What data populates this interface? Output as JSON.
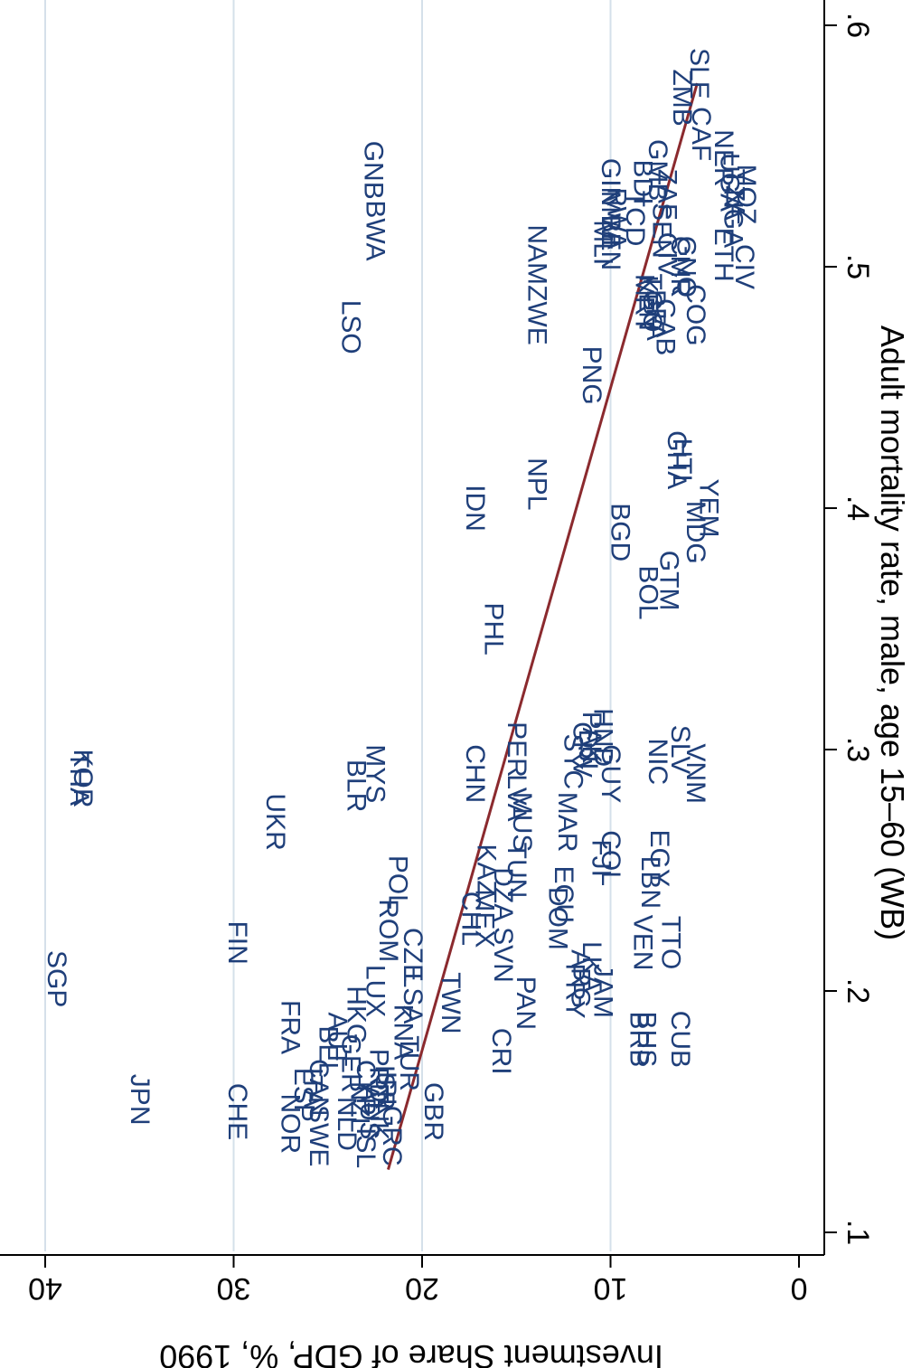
{
  "chart_data": {
    "type": "scatter",
    "xlabel": "Adult mortality rate, male, age 15–60 (WB)",
    "ylabel": "Investment Share of GDP, %, 1990",
    "xlim": [
      0.09,
      0.61
    ],
    "ylim": [
      0,
      40
    ],
    "x_ticks": [
      0.1,
      0.2,
      0.3,
      0.4,
      0.5,
      0.6
    ],
    "x_tick_labels": [
      ".1",
      ".2",
      ".3",
      ".4",
      ".5",
      ".6"
    ],
    "y_ticks": [
      0,
      10,
      20,
      30,
      40
    ],
    "y_tick_labels": [
      "0",
      "10",
      "20",
      "30",
      "40"
    ],
    "grid": true,
    "rotated": "figure rotated 90 degrees clockwise",
    "colors": {
      "label": "#1f3f7a",
      "fit": "#8b2a2e",
      "grid": "#d5e0ea"
    },
    "fit_line": {
      "x": [
        0.126,
        0.576
      ],
      "y": [
        21.8,
        5.4
      ]
    },
    "points": [
      {
        "label": "SGP",
        "x": 0.205,
        "y": 39.4
      },
      {
        "label": "JPN",
        "x": 0.155,
        "y": 35.0
      },
      {
        "label": "THA",
        "x": 0.288,
        "y": 38.2
      },
      {
        "label": "KOR",
        "x": 0.288,
        "y": 38.0
      },
      {
        "label": "CHE",
        "x": 0.15,
        "y": 29.8
      },
      {
        "label": "FIN",
        "x": 0.22,
        "y": 29.8
      },
      {
        "label": "UKR",
        "x": 0.27,
        "y": 27.8
      },
      {
        "label": "NOR",
        "x": 0.145,
        "y": 27.0
      },
      {
        "label": "FRA",
        "x": 0.185,
        "y": 27.0
      },
      {
        "label": "SWE",
        "x": 0.14,
        "y": 25.5
      },
      {
        "label": "ESP",
        "x": 0.157,
        "y": 26.3
      },
      {
        "label": "ITA",
        "x": 0.16,
        "y": 25.8
      },
      {
        "label": "CAN",
        "x": 0.16,
        "y": 25.5
      },
      {
        "label": "BEL",
        "x": 0.175,
        "y": 25.0
      },
      {
        "label": "AUT",
        "x": 0.18,
        "y": 24.5
      },
      {
        "label": "NLD",
        "x": 0.145,
        "y": 24.0
      },
      {
        "label": "GER",
        "x": 0.17,
        "y": 23.8
      },
      {
        "label": "HKG",
        "x": 0.19,
        "y": 23.5
      },
      {
        "label": "LUX",
        "x": 0.2,
        "y": 22.5
      },
      {
        "label": "ISL",
        "x": 0.135,
        "y": 23.0
      },
      {
        "label": "NZL",
        "x": 0.152,
        "y": 23.3
      },
      {
        "label": "CYP",
        "x": 0.16,
        "y": 23.0
      },
      {
        "label": "PRT",
        "x": 0.165,
        "y": 22.3
      },
      {
        "label": "AUS",
        "x": 0.15,
        "y": 22.8
      },
      {
        "label": "DNK",
        "x": 0.15,
        "y": 22.3
      },
      {
        "label": "IRL",
        "x": 0.158,
        "y": 21.9
      },
      {
        "label": "ISR",
        "x": 0.16,
        "y": 22.0
      },
      {
        "label": "GRC",
        "x": 0.14,
        "y": 21.6
      },
      {
        "label": "TUR",
        "x": 0.17,
        "y": 20.7
      },
      {
        "label": "GBR",
        "x": 0.15,
        "y": 19.4
      },
      {
        "label": "KNA",
        "x": 0.183,
        "y": 21.0
      },
      {
        "label": "LSA",
        "x": 0.197,
        "y": 20.5
      },
      {
        "label": "CZE",
        "x": 0.215,
        "y": 20.5
      },
      {
        "label": "ROM",
        "x": 0.225,
        "y": 21.8
      },
      {
        "label": "POL",
        "x": 0.245,
        "y": 21.3
      },
      {
        "label": "BLR",
        "x": 0.285,
        "y": 23.5
      },
      {
        "label": "MYS",
        "x": 0.29,
        "y": 22.5
      },
      {
        "label": "BWA",
        "x": 0.515,
        "y": 22.5
      },
      {
        "label": "GNB",
        "x": 0.54,
        "y": 22.6
      },
      {
        "label": "LSO",
        "x": 0.475,
        "y": 23.8
      },
      {
        "label": "TWN",
        "x": 0.195,
        "y": 18.5
      },
      {
        "label": "CHL",
        "x": 0.23,
        "y": 17.4
      },
      {
        "label": "CHN",
        "x": 0.29,
        "y": 17.2
      },
      {
        "label": "IDN",
        "x": 0.4,
        "y": 17.2
      },
      {
        "label": "MEX",
        "x": 0.23,
        "y": 16.7
      },
      {
        "label": "KAZ",
        "x": 0.25,
        "y": 16.6
      },
      {
        "label": "DZA",
        "x": 0.24,
        "y": 15.7
      },
      {
        "label": "TUN",
        "x": 0.25,
        "y": 15.0
      },
      {
        "label": "MUS",
        "x": 0.27,
        "y": 14.7
      },
      {
        "label": "LVA",
        "x": 0.28,
        "y": 15.0
      },
      {
        "label": "PER",
        "x": 0.3,
        "y": 15.0
      },
      {
        "label": "PHL",
        "x": 0.35,
        "y": 16.2
      },
      {
        "label": "SVN",
        "x": 0.215,
        "y": 15.7
      },
      {
        "label": "PAN",
        "x": 0.195,
        "y": 14.5
      },
      {
        "label": "CRI",
        "x": 0.175,
        "y": 15.8
      },
      {
        "label": "DOM",
        "x": 0.23,
        "y": 12.8
      },
      {
        "label": "ECU",
        "x": 0.24,
        "y": 12.5
      },
      {
        "label": "MAR",
        "x": 0.27,
        "y": 12.3
      },
      {
        "label": "SYC",
        "x": 0.295,
        "y": 12.0
      },
      {
        "label": "PRY",
        "x": 0.2,
        "y": 11.9
      },
      {
        "label": "ARG",
        "x": 0.205,
        "y": 11.6
      },
      {
        "label": "LKA",
        "x": 0.21,
        "y": 11.0
      },
      {
        "label": "JAM",
        "x": 0.2,
        "y": 10.4
      },
      {
        "label": "DJI",
        "x": 0.3,
        "y": 11.2
      },
      {
        "label": "CPV",
        "x": 0.3,
        "y": 11.5
      },
      {
        "label": "PAK",
        "x": 0.305,
        "y": 11.0
      },
      {
        "label": "HND",
        "x": 0.305,
        "y": 10.4
      },
      {
        "label": "GUY",
        "x": 0.29,
        "y": 10.0
      },
      {
        "label": "FJI",
        "x": 0.255,
        "y": 10.5
      },
      {
        "label": "COL",
        "x": 0.255,
        "y": 10.0
      },
      {
        "label": "NPL",
        "x": 0.41,
        "y": 13.9
      },
      {
        "label": "ZWE",
        "x": 0.48,
        "y": 13.9
      },
      {
        "label": "NAM",
        "x": 0.505,
        "y": 13.9
      },
      {
        "label": "PNG",
        "x": 0.455,
        "y": 11.0
      },
      {
        "label": "BGD",
        "x": 0.39,
        "y": 9.5
      },
      {
        "label": "BRB",
        "x": 0.18,
        "y": 8.5
      },
      {
        "label": "BHS",
        "x": 0.18,
        "y": 8.1
      },
      {
        "label": "VEN",
        "x": 0.22,
        "y": 8.3
      },
      {
        "label": "LBN",
        "x": 0.245,
        "y": 7.9
      },
      {
        "label": "EGY",
        "x": 0.255,
        "y": 7.4
      },
      {
        "label": "TTO",
        "x": 0.22,
        "y": 6.8
      },
      {
        "label": "CUB",
        "x": 0.18,
        "y": 6.3
      },
      {
        "label": "NIC",
        "x": 0.295,
        "y": 7.5
      },
      {
        "label": "SLV",
        "x": 0.3,
        "y": 6.3
      },
      {
        "label": "VNM",
        "x": 0.29,
        "y": 5.5
      },
      {
        "label": "BOL",
        "x": 0.365,
        "y": 8.0
      },
      {
        "label": "GTM",
        "x": 0.37,
        "y": 6.9
      },
      {
        "label": "MDG",
        "x": 0.39,
        "y": 5.5
      },
      {
        "label": "YEM",
        "x": 0.4,
        "y": 4.8
      },
      {
        "label": "GHA",
        "x": 0.42,
        "y": 6.5
      },
      {
        "label": "HTI",
        "x": 0.42,
        "y": 6.2
      },
      {
        "label": "MLI",
        "x": 0.51,
        "y": 10.4
      },
      {
        "label": "BEN",
        "x": 0.51,
        "y": 10.0
      },
      {
        "label": "MWI",
        "x": 0.52,
        "y": 10.0
      },
      {
        "label": "GIN",
        "x": 0.535,
        "y": 10.0
      },
      {
        "label": "RWA",
        "x": 0.52,
        "y": 9.7
      },
      {
        "label": "TCD",
        "x": 0.52,
        "y": 8.7
      },
      {
        "label": "BDI",
        "x": 0.535,
        "y": 8.3
      },
      {
        "label": "GMB",
        "x": 0.54,
        "y": 7.5
      },
      {
        "label": "SEN",
        "x": 0.515,
        "y": 7.3
      },
      {
        "label": "CIV",
        "x": 0.505,
        "y": 7.0
      },
      {
        "label": "ZAF",
        "x": 0.53,
        "y": 7.0
      },
      {
        "label": "CMR",
        "x": 0.5,
        "y": 6.3
      },
      {
        "label": "COG",
        "x": 0.48,
        "y": 5.5
      },
      {
        "label": "GNQ",
        "x": 0.5,
        "y": 6.0
      },
      {
        "label": "GAB",
        "x": 0.475,
        "y": 7.1
      },
      {
        "label": "KEN",
        "x": 0.485,
        "y": 8.0
      },
      {
        "label": "MRT",
        "x": 0.485,
        "y": 8.2
      },
      {
        "label": "TGO",
        "x": 0.485,
        "y": 7.8
      },
      {
        "label": "BFA",
        "x": 0.48,
        "y": 7.6
      },
      {
        "label": "ZMB",
        "x": 0.57,
        "y": 6.2
      },
      {
        "label": "SLE",
        "x": 0.58,
        "y": 5.3
      },
      {
        "label": "CAF",
        "x": 0.555,
        "y": 5.2
      },
      {
        "label": "NER",
        "x": 0.545,
        "y": 4.0
      },
      {
        "label": "UGA",
        "x": 0.535,
        "y": 3.7
      },
      {
        "label": "NGA",
        "x": 0.52,
        "y": 3.5
      },
      {
        "label": "TZA",
        "x": 0.53,
        "y": 3.4
      },
      {
        "label": "ETH",
        "x": 0.505,
        "y": 4.0
      },
      {
        "label": "MOZ",
        "x": 0.53,
        "y": 2.8
      },
      {
        "label": "CIV2",
        "display": "CIV",
        "x": 0.5,
        "y": 2.9
      }
    ]
  }
}
